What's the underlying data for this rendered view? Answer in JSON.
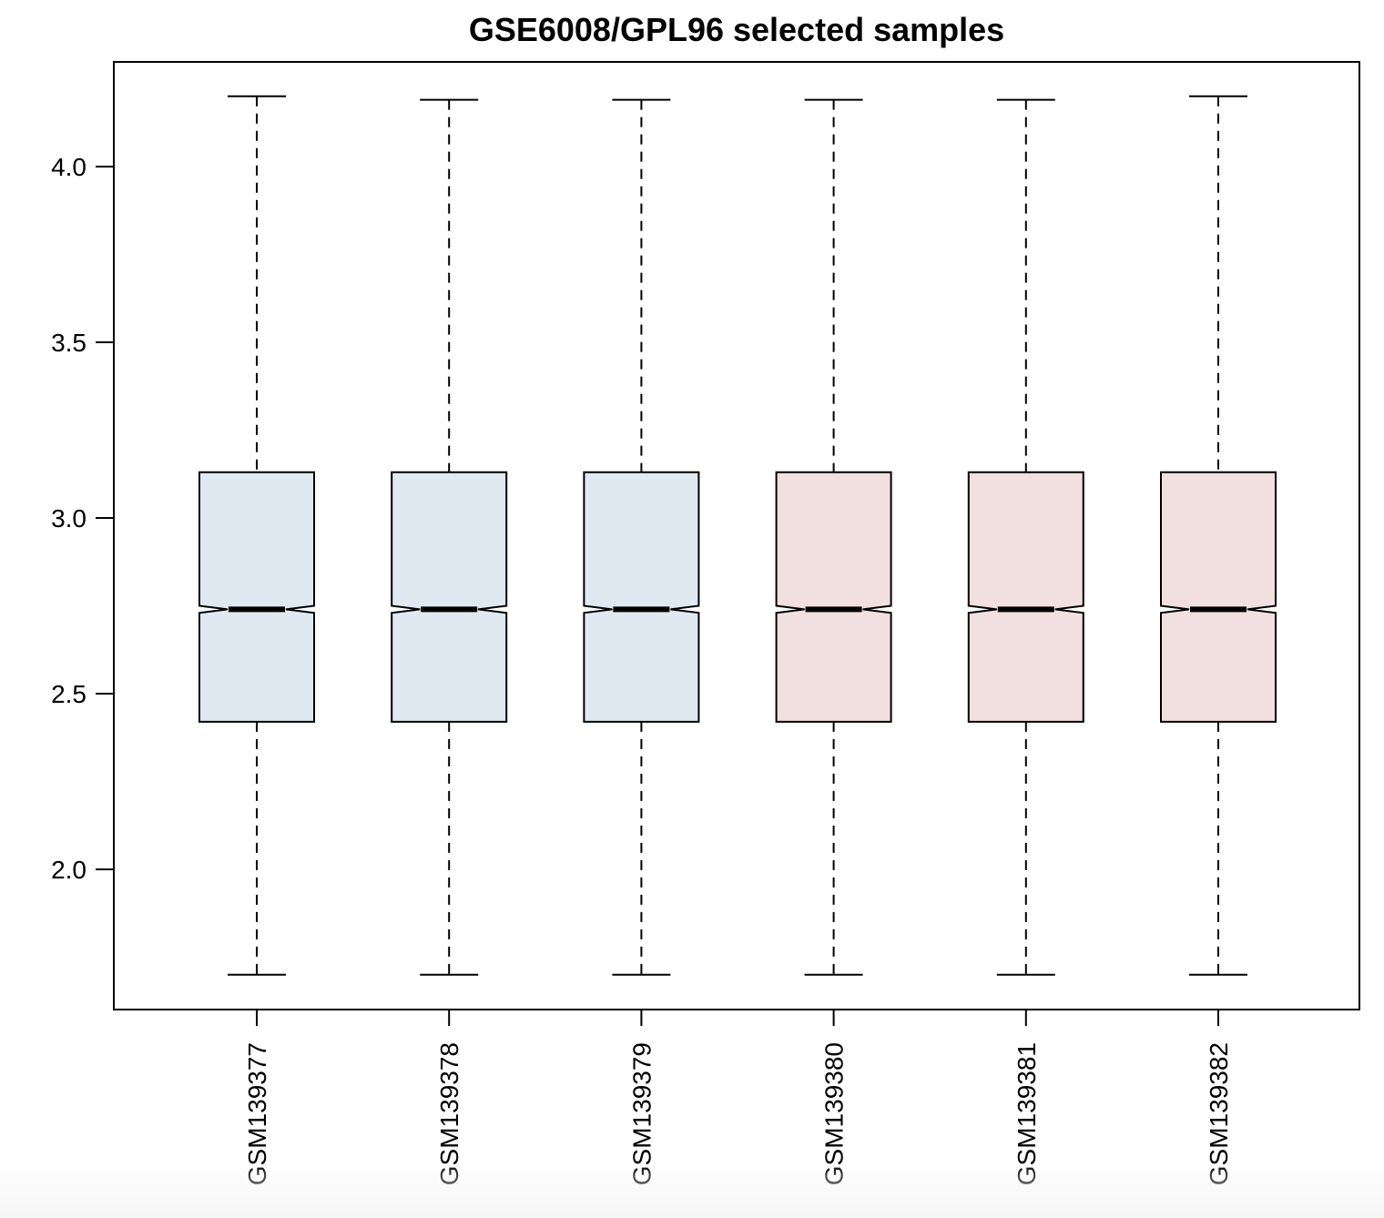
{
  "chart_data": {
    "type": "boxplot",
    "title": "GSE6008/GPL96 selected samples",
    "xlabel": "",
    "ylabel": "",
    "ylim": [
      1.6,
      4.3
    ],
    "yticks": [
      "2.0",
      "2.5",
      "3.0",
      "3.5",
      "4.0"
    ],
    "notched": true,
    "grid": false,
    "categories": [
      "GSM139377",
      "GSM139378",
      "GSM139379",
      "GSM139380",
      "GSM139381",
      "GSM139382"
    ],
    "boxes": [
      {
        "label": "GSM139377",
        "whisker_low": 1.7,
        "q1": 2.42,
        "median": 2.74,
        "q3": 3.13,
        "whisker_high": 4.2,
        "notch_low": 2.73,
        "notch_high": 2.75,
        "color": "#dfe9f2"
      },
      {
        "label": "GSM139378",
        "whisker_low": 1.7,
        "q1": 2.42,
        "median": 2.74,
        "q3": 3.13,
        "whisker_high": 4.19,
        "notch_low": 2.73,
        "notch_high": 2.75,
        "color": "#dfe9f2"
      },
      {
        "label": "GSM139379",
        "whisker_low": 1.7,
        "q1": 2.42,
        "median": 2.74,
        "q3": 3.13,
        "whisker_high": 4.19,
        "notch_low": 2.73,
        "notch_high": 2.75,
        "color": "#dfe9f2"
      },
      {
        "label": "GSM139380",
        "whisker_low": 1.7,
        "q1": 2.42,
        "median": 2.74,
        "q3": 3.13,
        "whisker_high": 4.19,
        "notch_low": 2.73,
        "notch_high": 2.75,
        "color": "#f2dfdf"
      },
      {
        "label": "GSM139381",
        "whisker_low": 1.7,
        "q1": 2.42,
        "median": 2.74,
        "q3": 3.13,
        "whisker_high": 4.19,
        "notch_low": 2.73,
        "notch_high": 2.75,
        "color": "#f2dfdf"
      },
      {
        "label": "GSM139382",
        "whisker_low": 1.7,
        "q1": 2.42,
        "median": 2.74,
        "q3": 3.13,
        "whisker_high": 4.2,
        "notch_low": 2.73,
        "notch_high": 2.75,
        "color": "#f2dfdf"
      }
    ]
  }
}
